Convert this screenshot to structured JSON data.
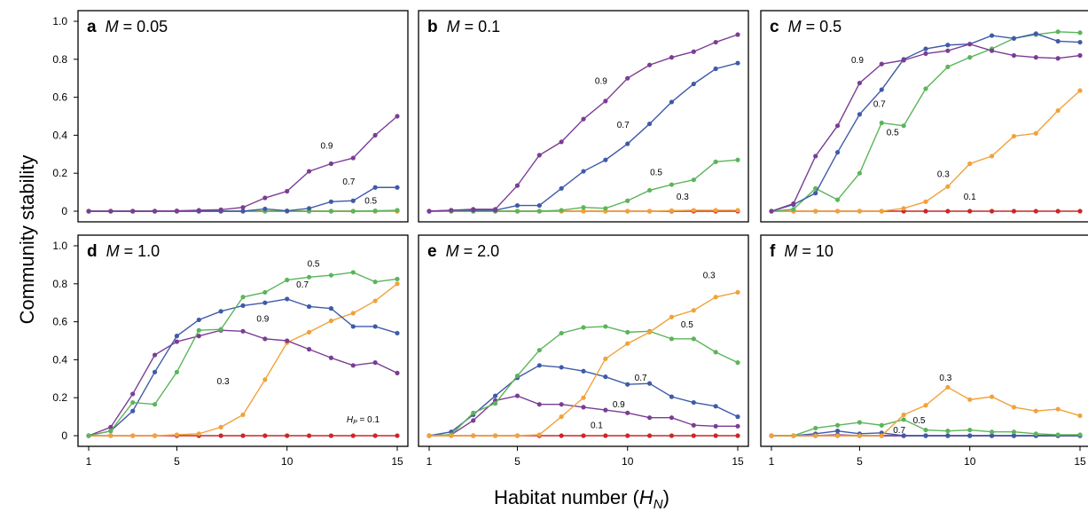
{
  "chart_data": {
    "type": "line",
    "ylabel": "Community stability",
    "xlabel_main": "Habitat number (",
    "xlabel_sym": "H",
    "xlabel_sub": "N",
    "xlabel_close": ")",
    "x": [
      1,
      2,
      3,
      4,
      5,
      6,
      7,
      8,
      9,
      10,
      11,
      12,
      13,
      14,
      15
    ],
    "xlim": [
      1,
      15
    ],
    "ylim": [
      0,
      1.0
    ],
    "x_ticks": [
      1,
      5,
      10,
      15
    ],
    "y_ticks": [
      0,
      0.2,
      0.4,
      0.6,
      0.8,
      1.0
    ],
    "y_tick_labels": [
      "0",
      "0.2",
      "0.4",
      "0.6",
      "0.8",
      "1.0"
    ],
    "colors": {
      "0.1": "#c8282a",
      "0.3": "#f0a23b",
      "0.5": "#5bb55a",
      "0.7": "#3f5aa8",
      "0.9": "#7b3d94"
    },
    "panels": [
      {
        "letter": "a",
        "title_var": "M",
        "title_rest": " = 0.05",
        "series": [
          {
            "name": "0.9",
            "values": [
              0,
              0,
              0,
              0,
              0.002,
              0.005,
              0.008,
              0.02,
              0.07,
              0.105,
              0.21,
              0.25,
              0.28,
              0.4,
              0.5
            ]
          },
          {
            "name": "0.7",
            "values": [
              0,
              0,
              0,
              0,
              0,
              0,
              0,
              0,
              0.012,
              0.002,
              0.015,
              0.05,
              0.055,
              0.125,
              0.125
            ]
          },
          {
            "name": "0.5",
            "values": [
              0,
              0,
              0,
              0,
              0,
              0,
              0,
              0,
              0,
              0,
              0,
              0,
              0,
              0.002,
              0.005
            ]
          },
          {
            "name": "0.3",
            "values": [
              0,
              0,
              0,
              0,
              0,
              0,
              0,
              0,
              0,
              0,
              0,
              0,
              0,
              0,
              0
            ]
          },
          {
            "name": "0.1",
            "values": [
              0,
              0,
              0,
              0,
              0,
              0,
              0,
              0,
              0,
              0,
              0,
              0,
              0,
              0,
              0
            ]
          }
        ],
        "labels": [
          {
            "text": "0.9",
            "series": "0.9",
            "x": 11.8,
            "y": 0.33
          },
          {
            "text": "0.7",
            "series": "0.7",
            "x": 12.8,
            "y": 0.14
          },
          {
            "text": "0.5",
            "series": "0.5",
            "x": 13.8,
            "y": 0.04
          }
        ]
      },
      {
        "letter": "b",
        "title_var": "M",
        "title_rest": " = 0.1",
        "series": [
          {
            "name": "0.9",
            "values": [
              0,
              0.005,
              0.01,
              0.01,
              0.135,
              0.295,
              0.365,
              0.485,
              0.58,
              0.7,
              0.77,
              0.81,
              0.84,
              0.89,
              0.93
            ]
          },
          {
            "name": "0.7",
            "values": [
              0,
              0.005,
              0.005,
              0.005,
              0.03,
              0.03,
              0.12,
              0.21,
              0.27,
              0.355,
              0.46,
              0.575,
              0.67,
              0.75,
              0.78
            ]
          },
          {
            "name": "0.5",
            "values": [
              0,
              0,
              0,
              0,
              0,
              0,
              0.005,
              0.02,
              0.015,
              0.055,
              0.11,
              0.14,
              0.165,
              0.26,
              0.27
            ]
          },
          {
            "name": "0.3",
            "values": [
              0,
              0,
              0,
              0,
              0,
              0,
              0,
              0,
              0,
              0,
              0,
              0.003,
              0.005,
              0.005,
              0.005
            ]
          },
          {
            "name": "0.1",
            "values": [
              0,
              0,
              0,
              0,
              0,
              0,
              0,
              0,
              0,
              0,
              0,
              0,
              0,
              0,
              0
            ]
          }
        ],
        "labels": [
          {
            "text": "0.9",
            "series": "0.9",
            "x": 8.8,
            "y": 0.67
          },
          {
            "text": "0.7",
            "series": "0.7",
            "x": 9.8,
            "y": 0.44
          },
          {
            "text": "0.5",
            "series": "0.5",
            "x": 11.3,
            "y": 0.19
          },
          {
            "text": "0.3",
            "series": "0.3",
            "x": 12.5,
            "y": 0.06
          }
        ]
      },
      {
        "letter": "c",
        "title_var": "M",
        "title_rest": " = 0.5",
        "series": [
          {
            "name": "0.9",
            "values": [
              0,
              0.04,
              0.29,
              0.45,
              0.675,
              0.775,
              0.795,
              0.83,
              0.845,
              0.88,
              0.845,
              0.82,
              0.81,
              0.805,
              0.82
            ]
          },
          {
            "name": "0.7",
            "values": [
              0,
              0.035,
              0.095,
              0.31,
              0.51,
              0.64,
              0.8,
              0.855,
              0.875,
              0.88,
              0.925,
              0.91,
              0.935,
              0.895,
              0.89
            ]
          },
          {
            "name": "0.5",
            "values": [
              0,
              0.01,
              0.12,
              0.06,
              0.2,
              0.465,
              0.45,
              0.645,
              0.76,
              0.81,
              0.855,
              0.91,
              0.93,
              0.945,
              0.94
            ]
          },
          {
            "name": "0.3",
            "values": [
              0,
              0,
              0,
              0,
              0,
              0,
              0.015,
              0.05,
              0.13,
              0.25,
              0.29,
              0.395,
              0.41,
              0.53,
              0.635
            ]
          },
          {
            "name": "0.1",
            "values": [
              0,
              0,
              0,
              0,
              0,
              0,
              0,
              0,
              0,
              0,
              0,
              0,
              0,
              0,
              0
            ]
          }
        ],
        "labels": [
          {
            "text": "0.9",
            "series": "0.9",
            "x": 4.9,
            "y": 0.78
          },
          {
            "text": "0.7",
            "series": "0.7",
            "x": 5.9,
            "y": 0.55
          },
          {
            "text": "0.5",
            "series": "0.5",
            "x": 6.5,
            "y": 0.4
          },
          {
            "text": "0.3",
            "series": "0.3",
            "x": 8.8,
            "y": 0.18
          },
          {
            "text": "0.1",
            "series": "0.1",
            "x": 10.0,
            "y": 0.06
          }
        ]
      },
      {
        "letter": "d",
        "title_var": "M",
        "title_rest": " = 1.0",
        "series": [
          {
            "name": "0.5",
            "values": [
              0,
              0.025,
              0.175,
              0.165,
              0.335,
              0.555,
              0.56,
              0.73,
              0.755,
              0.82,
              0.835,
              0.845,
              0.86,
              0.81,
              0.825
            ]
          },
          {
            "name": "0.7",
            "values": [
              0,
              0.025,
              0.13,
              0.335,
              0.525,
              0.61,
              0.655,
              0.685,
              0.7,
              0.72,
              0.68,
              0.67,
              0.575,
              0.575,
              0.54
            ]
          },
          {
            "name": "0.9",
            "values": [
              0,
              0.045,
              0.22,
              0.425,
              0.495,
              0.525,
              0.555,
              0.55,
              0.51,
              0.5,
              0.455,
              0.41,
              0.37,
              0.385,
              0.33
            ]
          },
          {
            "name": "0.3",
            "values": [
              0,
              0,
              0,
              0,
              0.005,
              0.01,
              0.045,
              0.11,
              0.295,
              0.49,
              0.545,
              0.605,
              0.645,
              0.71,
              0.8
            ]
          },
          {
            "name": "0.1",
            "values": [
              0,
              0,
              0,
              0,
              0,
              0,
              0,
              0,
              0,
              0,
              0,
              0,
              0,
              0,
              0
            ]
          }
        ],
        "labels": [
          {
            "text": "0.5",
            "series": "0.5",
            "x": 11.2,
            "y": 0.89
          },
          {
            "text": "0.7",
            "series": "0.7",
            "x": 10.7,
            "y": 0.78
          },
          {
            "text": "0.9",
            "series": "0.9",
            "x": 8.9,
            "y": 0.6
          },
          {
            "text": "0.3",
            "series": "0.3",
            "x": 7.1,
            "y": 0.27
          }
        ],
        "hp_label": {
          "sym": "H",
          "sub": "P",
          "rest": " = 0.1",
          "x": 12.7,
          "y": 0.07
        }
      },
      {
        "letter": "e",
        "title_var": "M",
        "title_rest": " = 2.0",
        "series": [
          {
            "name": "0.3",
            "values": [
              0,
              0,
              0,
              0,
              0,
              0.005,
              0.1,
              0.2,
              0.405,
              0.485,
              0.545,
              0.625,
              0.66,
              0.73,
              0.755
            ]
          },
          {
            "name": "0.5",
            "values": [
              0,
              0.005,
              0.12,
              0.17,
              0.315,
              0.45,
              0.54,
              0.57,
              0.575,
              0.545,
              0.55,
              0.51,
              0.51,
              0.44,
              0.385
            ]
          },
          {
            "name": "0.7",
            "values": [
              0,
              0.02,
              0.11,
              0.21,
              0.305,
              0.37,
              0.36,
              0.34,
              0.31,
              0.27,
              0.275,
              0.205,
              0.175,
              0.155,
              0.1
            ]
          },
          {
            "name": "0.9",
            "values": [
              0,
              0.005,
              0.08,
              0.185,
              0.21,
              0.165,
              0.165,
              0.15,
              0.135,
              0.12,
              0.095,
              0.095,
              0.055,
              0.05,
              0.05
            ]
          },
          {
            "name": "0.1",
            "values": [
              0,
              0,
              0,
              0,
              0,
              0,
              0,
              0,
              0,
              0,
              0,
              0,
              0,
              0,
              0
            ]
          }
        ],
        "labels": [
          {
            "text": "0.3",
            "series": "0.3",
            "x": 13.7,
            "y": 0.83
          },
          {
            "text": "0.5",
            "series": "0.5",
            "x": 12.7,
            "y": 0.57
          },
          {
            "text": "0.7",
            "series": "0.7",
            "x": 10.6,
            "y": 0.29
          },
          {
            "text": "0.9",
            "series": "0.9",
            "x": 9.6,
            "y": 0.15
          },
          {
            "text": "0.1",
            "series": "0.1",
            "x": 8.6,
            "y": 0.04
          }
        ]
      },
      {
        "letter": "f",
        "title_var": "M",
        "title_rest": " = 10",
        "series": [
          {
            "name": "0.3",
            "values": [
              0,
              0,
              0,
              0,
              0,
              0,
              0.11,
              0.16,
              0.255,
              0.19,
              0.205,
              0.15,
              0.13,
              0.14,
              0.105
            ]
          },
          {
            "name": "0.5",
            "values": [
              0,
              0,
              0.04,
              0.055,
              0.07,
              0.055,
              0.085,
              0.03,
              0.025,
              0.03,
              0.02,
              0.02,
              0.01,
              0.005,
              0.005
            ]
          },
          {
            "name": "0.7",
            "values": [
              0,
              0,
              0.01,
              0.025,
              0.01,
              0.015,
              0,
              0,
              0,
              0,
              0,
              0,
              0,
              0,
              0
            ]
          },
          {
            "name": "0.9",
            "values": [
              0,
              0,
              0,
              0.005,
              0,
              0,
              0,
              0,
              0,
              0,
              0,
              0,
              0,
              0,
              0
            ]
          },
          {
            "name": "0.1",
            "values": [
              0,
              0,
              0,
              0,
              0,
              0,
              0,
              0,
              0,
              0,
              0,
              0,
              0,
              0,
              0
            ]
          }
        ],
        "labels": [
          {
            "text": "0.3",
            "series": "0.3",
            "x": 8.9,
            "y": 0.29
          },
          {
            "text": "0.5",
            "series": "0.5",
            "x": 7.7,
            "y": 0.065
          },
          {
            "text": "0.7",
            "series": "0.7",
            "x": 6.8,
            "y": 0.015
          }
        ]
      }
    ]
  }
}
